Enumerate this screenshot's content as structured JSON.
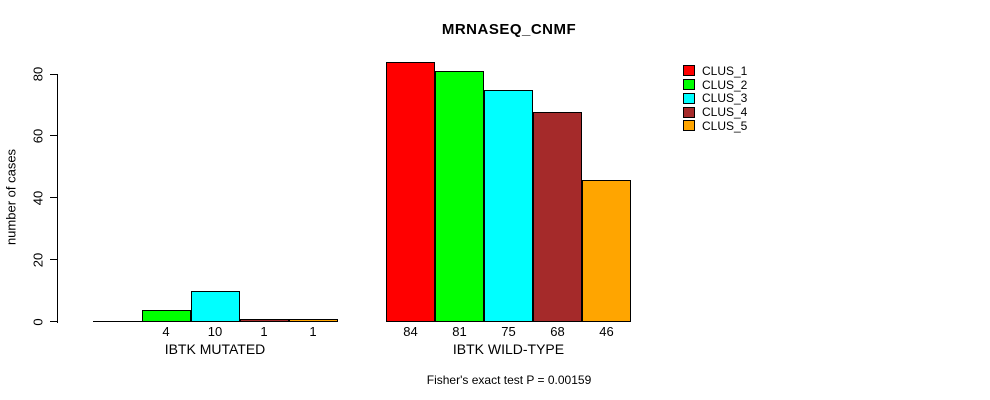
{
  "figure": {
    "background": "#ffffff",
    "axis_color": "#000000",
    "text_color": "#000000"
  },
  "chart_data": {
    "type": "bar",
    "title": "MRNASEQ_CNMF",
    "xlabel": "",
    "ylabel": "number of cases",
    "ylim": [
      0,
      80
    ],
    "yticks": [
      0,
      20,
      40,
      60,
      80
    ],
    "grid": false,
    "legend_position": "top-right",
    "categories": [
      "IBTK MUTATED",
      "IBTK WILD-TYPE"
    ],
    "series": [
      {
        "name": "CLUS_1",
        "color": "#ff0000",
        "values": [
          0,
          84
        ]
      },
      {
        "name": "CLUS_2",
        "color": "#00ff00",
        "values": [
          4,
          81
        ]
      },
      {
        "name": "CLUS_3",
        "color": "#00ffff",
        "values": [
          10,
          75
        ]
      },
      {
        "name": "CLUS_4",
        "color": "#a52a2a",
        "values": [
          1,
          68
        ]
      },
      {
        "name": "CLUS_5",
        "color": "#ffa500",
        "values": [
          1,
          46
        ]
      }
    ],
    "bar_value_labels": [
      [
        "",
        "4",
        "10",
        "1",
        "1"
      ],
      [
        "84",
        "81",
        "75",
        "68",
        "46"
      ]
    ],
    "annotation": "Fisher's exact test P = 0.00159"
  }
}
